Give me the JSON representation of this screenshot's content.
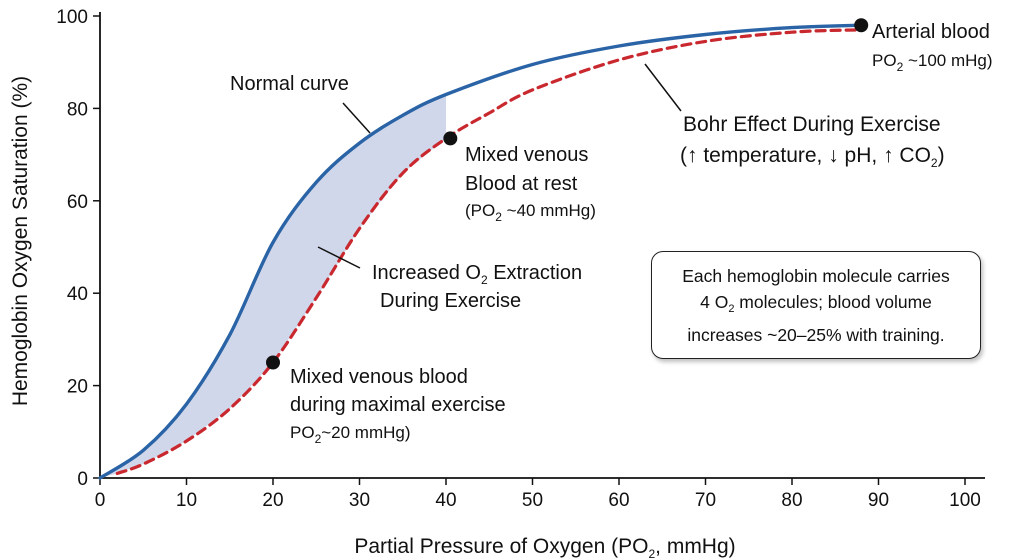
{
  "chart_data": {
    "type": "line",
    "xlabel": "Partial Pressure of Oxygen (PO₂, mmHg)",
    "ylabel": "Hemoglobin Oxygen Saturation (%)",
    "xlim": [
      0,
      100
    ],
    "ylim": [
      0,
      100
    ],
    "x_ticks": [
      "0",
      "10",
      "20",
      "30",
      "40",
      "50",
      "60",
      "70",
      "80",
      "90",
      "100"
    ],
    "y_ticks": [
      "0",
      "20",
      "40",
      "60",
      "80",
      "100"
    ],
    "grid": false,
    "series": [
      {
        "name": "Normal curve",
        "color": "#2a64a6",
        "style": "solid",
        "x": [
          0,
          5,
          10,
          15,
          20,
          25,
          30,
          35,
          40,
          50,
          60,
          70,
          80,
          88
        ],
        "y": [
          0,
          6,
          16,
          31,
          51,
          64,
          72.5,
          78.5,
          83,
          89.5,
          93.5,
          96,
          97.5,
          98
        ]
      },
      {
        "name": "Bohr Effect During Exercise",
        "color": "#c8282e",
        "style": "dashed",
        "x": [
          2,
          5,
          10,
          15,
          20,
          25,
          30,
          35,
          40,
          45,
          50,
          60,
          70,
          80,
          88
        ],
        "y": [
          1,
          3,
          8,
          15,
          25,
          39,
          54,
          66,
          73.5,
          79,
          84,
          90.5,
          94.5,
          96.5,
          97
        ]
      }
    ],
    "points": [
      {
        "x": 88,
        "y": 98,
        "label": "Arterial blood"
      },
      {
        "x": 40.5,
        "y": 73.5,
        "label": "Mixed venous Blood at rest"
      },
      {
        "x": 20,
        "y": 25,
        "label": "Mixed venous blood during maximal exercise"
      }
    ],
    "shaded_region": {
      "label": "Increased O₂ Extraction During Exercise",
      "x_range": [
        0,
        40
      ],
      "color": "#c9d0e6"
    },
    "annotations": {
      "normal_curve": "Normal curve",
      "arterial_title": "Arterial blood",
      "arterial_po2_pre": "PO",
      "arterial_po2_sub": "2",
      "arterial_po2_post": " ~100 mHg)",
      "bohr_title": "Bohr Effect During Exercise",
      "bohr_detail_pre": "(↑ temperature, ↓ pH, ↑ CO",
      "bohr_detail_sub": "2",
      "bohr_detail_post": ")",
      "rest_line1": "Mixed venous",
      "rest_line2": "Blood at rest",
      "rest_po2_pre": "(PO",
      "rest_po2_sub": "2",
      "rest_po2_post": " ~40 mmHg)",
      "extraction_line1_pre": "Increased O",
      "extraction_line1_sub": "2",
      "extraction_line1_post": " Extraction",
      "extraction_line2": "During Exercise",
      "exercise_line1": "Mixed venous blood",
      "exercise_line2": "during maximal exercise",
      "exercise_po2_pre": "PO",
      "exercise_po2_sub": "2",
      "exercise_po2_post": "~20 mmHg)"
    },
    "note": {
      "line1": "Each hemoglobin molecule carries",
      "line2_pre": "4 O",
      "line2_sub": "2",
      "line2_post": " molecules; blood volume",
      "line3": "increases ~20–25% with training."
    },
    "axis_title_x_pre": "Partial Pressure of Oxygen (PO",
    "axis_title_x_sub": "2",
    "axis_title_x_post": ", mmHg)"
  }
}
